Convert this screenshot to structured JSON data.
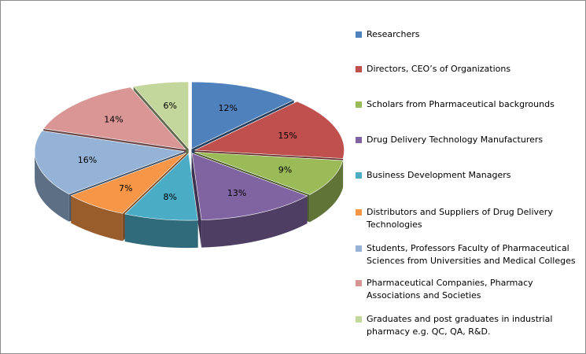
{
  "chart_data": {
    "type": "pie",
    "style": "3d-exploded",
    "title": "",
    "legend_position": "right",
    "slices": [
      {
        "label": "Researchers",
        "value": 12,
        "display": "12%",
        "color": "#4F81BD"
      },
      {
        "label": "Directors, CEO’s of Organizations",
        "value": 15,
        "display": "15%",
        "color": "#C0504D"
      },
      {
        "label": "Scholars from Pharmaceutical backgrounds",
        "value": 9,
        "display": "9%",
        "color": "#9BBB59"
      },
      {
        "label": "Drug Delivery Technology Manufacturers",
        "value": 13,
        "display": "13%",
        "color": "#8064A2"
      },
      {
        "label": "Business Development Managers",
        "value": 8,
        "display": "8%",
        "color": "#4BACC6"
      },
      {
        "label": "Distributors and Suppliers of Drug Delivery Technologies",
        "value": 7,
        "display": "7%",
        "color": "#F79646"
      },
      {
        "label": "Students, Professors Faculty of Pharmaceutical Sciences from Universities and Medical Colleges",
        "value": 16,
        "display": "16%",
        "color": "#95B3D7"
      },
      {
        "label": "Pharmaceutical Companies, Pharmacy Associations and Societies",
        "value": 14,
        "display": "14%",
        "color": "#D99694"
      },
      {
        "label": "Graduates and post graduates in industrial pharmacy e.g. QC, QA, R&D.",
        "value": 6,
        "display": "6%",
        "color": "#C3D69B"
      }
    ]
  }
}
